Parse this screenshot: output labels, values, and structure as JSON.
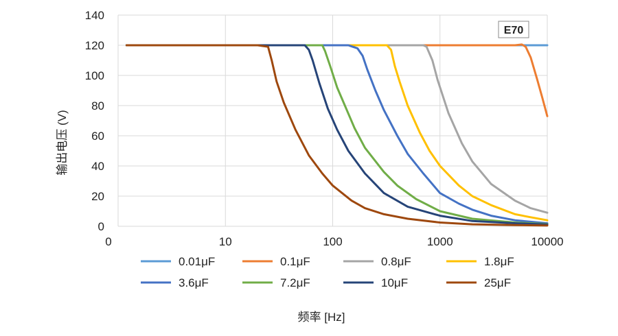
{
  "chart_data": {
    "type": "line",
    "title": "",
    "xlabel": "频率 [Hz]",
    "ylabel": "输出电压 (V)",
    "x_scale": "log",
    "xlim": [
      1,
      10000
    ],
    "ylim": [
      0,
      140
    ],
    "x_tick_labels": [
      "0",
      "10",
      "100",
      "1000",
      "10000"
    ],
    "y_ticks": [
      0,
      20,
      40,
      60,
      80,
      100,
      120,
      140
    ],
    "grid": true,
    "legend_position": "bottom",
    "annotation": "E70",
    "series": [
      {
        "name": "0.01μF",
        "color": "#5B9BD5",
        "points": [
          [
            1.2,
            120
          ],
          [
            10,
            120
          ],
          [
            100,
            120
          ],
          [
            1000,
            120
          ],
          [
            10000,
            120
          ]
        ]
      },
      {
        "name": "0.1μF",
        "color": "#ED7D31",
        "points": [
          [
            1.2,
            120
          ],
          [
            10,
            120
          ],
          [
            100,
            120
          ],
          [
            1000,
            120
          ],
          [
            5000,
            120
          ],
          [
            5800,
            120.5
          ],
          [
            6300,
            119
          ],
          [
            7000,
            112
          ],
          [
            8000,
            98
          ],
          [
            9000,
            85
          ],
          [
            10000,
            73
          ]
        ]
      },
      {
        "name": "0.8μF",
        "color": "#A5A5A5",
        "points": [
          [
            1.2,
            120
          ],
          [
            100,
            120
          ],
          [
            500,
            120
          ],
          [
            700,
            120
          ],
          [
            750,
            119
          ],
          [
            850,
            110
          ],
          [
            950,
            97
          ],
          [
            1200,
            75
          ],
          [
            1600,
            55
          ],
          [
            2000,
            43
          ],
          [
            3000,
            28
          ],
          [
            5000,
            17
          ],
          [
            7000,
            12
          ],
          [
            10000,
            9
          ]
        ]
      },
      {
        "name": "1.8μF",
        "color": "#FFC000",
        "points": [
          [
            1.2,
            120
          ],
          [
            100,
            120
          ],
          [
            250,
            120
          ],
          [
            320,
            120
          ],
          [
            350,
            117
          ],
          [
            380,
            106
          ],
          [
            420,
            96
          ],
          [
            500,
            80
          ],
          [
            650,
            62
          ],
          [
            800,
            50
          ],
          [
            1000,
            40
          ],
          [
            1500,
            27
          ],
          [
            2000,
            20
          ],
          [
            3000,
            14
          ],
          [
            5000,
            8
          ],
          [
            7000,
            6
          ],
          [
            10000,
            4
          ]
        ]
      },
      {
        "name": "3.6μF",
        "color": "#4472C4",
        "points": [
          [
            1.2,
            120
          ],
          [
            100,
            120
          ],
          [
            140,
            120
          ],
          [
            170,
            118
          ],
          [
            190,
            113
          ],
          [
            210,
            104
          ],
          [
            250,
            90
          ],
          [
            300,
            77
          ],
          [
            400,
            60
          ],
          [
            500,
            48
          ],
          [
            700,
            35
          ],
          [
            1000,
            22
          ],
          [
            1500,
            15
          ],
          [
            2000,
            11
          ],
          [
            3000,
            7
          ],
          [
            5000,
            4
          ],
          [
            10000,
            2
          ]
        ]
      },
      {
        "name": "7.2μF",
        "color": "#70AD47",
        "points": [
          [
            1.2,
            120
          ],
          [
            60,
            120
          ],
          [
            80,
            120
          ],
          [
            85,
            116
          ],
          [
            95,
            106
          ],
          [
            110,
            92
          ],
          [
            130,
            80
          ],
          [
            160,
            65
          ],
          [
            200,
            52
          ],
          [
            300,
            36
          ],
          [
            400,
            27
          ],
          [
            600,
            18
          ],
          [
            1000,
            10
          ],
          [
            2000,
            5
          ],
          [
            5000,
            2.5
          ],
          [
            10000,
            1.5
          ]
        ]
      },
      {
        "name": "10μF",
        "color": "#264478",
        "points": [
          [
            1.2,
            120
          ],
          [
            40,
            120
          ],
          [
            55,
            120
          ],
          [
            60,
            117
          ],
          [
            65,
            110
          ],
          [
            75,
            95
          ],
          [
            90,
            78
          ],
          [
            110,
            64
          ],
          [
            140,
            50
          ],
          [
            200,
            35
          ],
          [
            300,
            22
          ],
          [
            500,
            13
          ],
          [
            1000,
            7
          ],
          [
            2000,
            3.5
          ],
          [
            5000,
            2
          ],
          [
            10000,
            1.2
          ]
        ]
      },
      {
        "name": "25μF",
        "color": "#9E480E",
        "points": [
          [
            1.2,
            120
          ],
          [
            20,
            120
          ],
          [
            25,
            119
          ],
          [
            27,
            110
          ],
          [
            30,
            96
          ],
          [
            35,
            82
          ],
          [
            45,
            64
          ],
          [
            60,
            47
          ],
          [
            80,
            35
          ],
          [
            100,
            27
          ],
          [
            150,
            17
          ],
          [
            200,
            12
          ],
          [
            300,
            8
          ],
          [
            500,
            5
          ],
          [
            1000,
            2.5
          ],
          [
            2000,
            1.3
          ],
          [
            5000,
            0.8
          ],
          [
            10000,
            0.5
          ]
        ]
      }
    ]
  }
}
